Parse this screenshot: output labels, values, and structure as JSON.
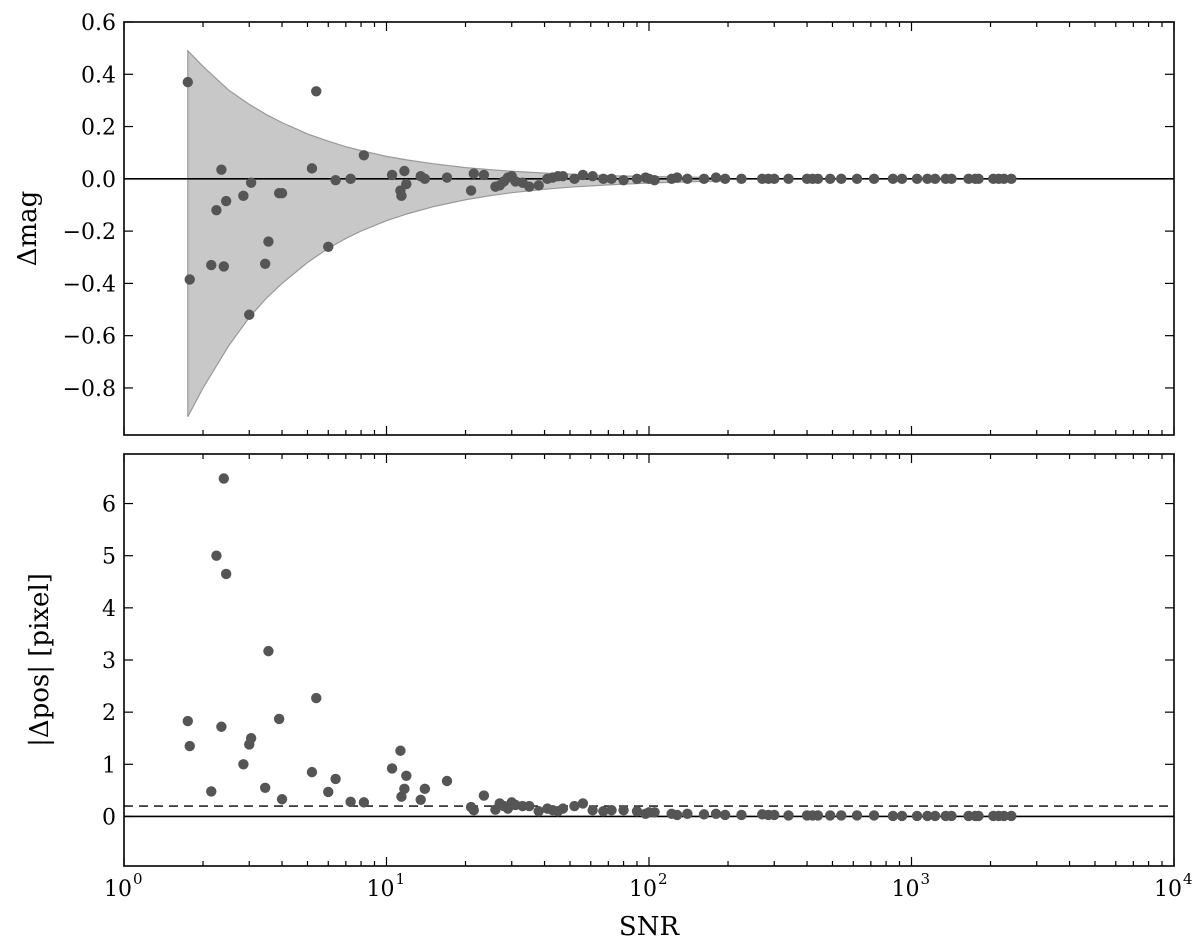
{
  "chart_data": [
    {
      "type": "scatter",
      "title": "",
      "xlabel": "",
      "ylabel": "Δmag",
      "xscale": "log",
      "xlim": [
        1,
        10000
      ],
      "ylim": [
        -0.98,
        0.6
      ],
      "yticks": [
        0.6,
        0.4,
        0.2,
        0.0,
        -0.2,
        -0.4,
        -0.6,
        -0.8
      ],
      "ytick_labels": [
        "0.6",
        "0.4",
        "0.2",
        "0.0",
        "−0.2",
        "−0.4",
        "−0.6",
        "−0.8"
      ],
      "point_color": "#555555",
      "band_color": "#c8c8c8",
      "reference_line": 0.0,
      "band": {
        "x": [
          1.75,
          2.0,
          2.5,
          3,
          3.5,
          4,
          5,
          6,
          7,
          8,
          10,
          12,
          15,
          20,
          25,
          30,
          40,
          50,
          70,
          100,
          150,
          200
        ],
        "upper": [
          0.49,
          0.43,
          0.34,
          0.285,
          0.245,
          0.215,
          0.172,
          0.144,
          0.123,
          0.108,
          0.086,
          0.072,
          0.058,
          0.043,
          0.035,
          0.029,
          0.022,
          0.018,
          0.012,
          0.009,
          0.006,
          0.004
        ],
        "lower": [
          -0.91,
          -0.8,
          -0.64,
          -0.53,
          -0.455,
          -0.4,
          -0.32,
          -0.266,
          -0.228,
          -0.2,
          -0.16,
          -0.134,
          -0.107,
          -0.08,
          -0.064,
          -0.053,
          -0.04,
          -0.032,
          -0.023,
          -0.016,
          -0.011,
          -0.008
        ]
      },
      "x": [
        1.75,
        1.78,
        2.15,
        2.25,
        2.35,
        2.4,
        2.45,
        2.85,
        3.0,
        3.05,
        3.45,
        3.55,
        3.9,
        4.0,
        5.2,
        5.4,
        6.0,
        6.4,
        7.3,
        8.2,
        10.5,
        11.3,
        11.4,
        11.7,
        11.9,
        13.5,
        14.0,
        17.0,
        21.0,
        21.5,
        23.5,
        26.0,
        27.0,
        28.0,
        29.0,
        30.0,
        31.0,
        33.0,
        35.0,
        38.0,
        41.0,
        43.0,
        45.0,
        47.0,
        52.0,
        56.0,
        61.0,
        67.0,
        72.0,
        80.0,
        90.0,
        97.0,
        100.0,
        105.0,
        122.0,
        128.0,
        140.0,
        162.0,
        180.0,
        195.0,
        225.0,
        270.0,
        285.0,
        300.0,
        340.0,
        400.0,
        420.0,
        440.0,
        490.0,
        540.0,
        620.0,
        720.0,
        850.0,
        920.0,
        1050.0,
        1150.0,
        1230.0,
        1350.0,
        1420.0,
        1650.0,
        1750.0,
        1800.0,
        2050.0,
        2150.0,
        2250.0,
        2400.0
      ],
      "y": [
        0.37,
        -0.385,
        -0.33,
        -0.12,
        0.035,
        -0.335,
        -0.085,
        -0.065,
        -0.52,
        -0.015,
        -0.325,
        -0.24,
        -0.055,
        -0.055,
        0.04,
        0.335,
        -0.26,
        -0.005,
        0.0,
        0.09,
        0.015,
        -0.045,
        -0.065,
        0.03,
        -0.02,
        0.01,
        0.0,
        0.005,
        -0.045,
        0.02,
        0.015,
        -0.03,
        -0.025,
        -0.01,
        0.005,
        0.01,
        -0.01,
        -0.015,
        -0.03,
        -0.025,
        0.0,
        0.005,
        0.01,
        0.01,
        0.0,
        0.015,
        0.01,
        0.0,
        0.0,
        -0.005,
        0.0,
        0.005,
        0.0,
        -0.005,
        0.0,
        0.005,
        0.0,
        0.0,
        0.005,
        0.0,
        0.0,
        0.0,
        0.0,
        0.0,
        0.0,
        0.0,
        0.0,
        0.0,
        0.0,
        0.0,
        0.0,
        0.0,
        0.0,
        0.0,
        0.0,
        0.0,
        0.0,
        0.0,
        0.0,
        0.0,
        0.0,
        0.0,
        0.0,
        0.0,
        0.0,
        0.0
      ]
    },
    {
      "type": "scatter",
      "title": "",
      "xlabel": "SNR",
      "ylabel": "|Δpos| [pixel]",
      "xscale": "log",
      "xlim": [
        1,
        10000
      ],
      "xticks": [
        1,
        10,
        100,
        1000,
        10000
      ],
      "xtick_labels": [
        {
          "base": "10",
          "exp": "0"
        },
        {
          "base": "10",
          "exp": "1"
        },
        {
          "base": "10",
          "exp": "2"
        },
        {
          "base": "10",
          "exp": "3"
        },
        {
          "base": "10",
          "exp": "4"
        }
      ],
      "ylim": [
        -0.95,
        6.95
      ],
      "yticks": [
        6,
        5,
        4,
        3,
        2,
        1,
        0
      ],
      "ytick_labels": [
        "6",
        "5",
        "4",
        "3",
        "2",
        "1",
        "0"
      ],
      "point_color": "#555555",
      "reference_line": 0.0,
      "dashed_line": 0.2,
      "x": [
        1.75,
        1.78,
        2.15,
        2.25,
        2.35,
        2.4,
        2.45,
        2.85,
        3.0,
        3.05,
        3.45,
        3.55,
        3.9,
        4.0,
        5.2,
        5.4,
        6.0,
        6.4,
        7.3,
        8.2,
        10.5,
        11.3,
        11.4,
        11.7,
        11.9,
        13.5,
        14.0,
        17.0,
        21.0,
        21.5,
        23.5,
        26.0,
        27.0,
        28.0,
        29.0,
        30.0,
        31.0,
        33.0,
        35.0,
        38.0,
        41.0,
        43.0,
        45.0,
        47.0,
        52.0,
        56.0,
        61.0,
        67.0,
        72.0,
        80.0,
        90.0,
        97.0,
        100.0,
        105.0,
        122.0,
        128.0,
        140.0,
        162.0,
        180.0,
        195.0,
        225.0,
        270.0,
        285.0,
        300.0,
        340.0,
        400.0,
        420.0,
        440.0,
        490.0,
        540.0,
        620.0,
        720.0,
        850.0,
        920.0,
        1050.0,
        1150.0,
        1230.0,
        1350.0,
        1420.0,
        1650.0,
        1750.0,
        1800.0,
        2050.0,
        2150.0,
        2250.0,
        2400.0
      ],
      "y": [
        1.83,
        1.35,
        0.48,
        5.0,
        1.72,
        6.48,
        4.65,
        1.0,
        1.38,
        1.5,
        0.55,
        3.17,
        1.87,
        0.33,
        0.85,
        2.27,
        0.47,
        0.72,
        0.28,
        0.27,
        0.92,
        1.26,
        0.38,
        0.53,
        0.78,
        0.32,
        0.53,
        0.68,
        0.18,
        0.12,
        0.4,
        0.13,
        0.25,
        0.2,
        0.15,
        0.27,
        0.22,
        0.2,
        0.2,
        0.1,
        0.15,
        0.12,
        0.1,
        0.15,
        0.2,
        0.25,
        0.12,
        0.1,
        0.12,
        0.12,
        0.1,
        0.05,
        0.08,
        0.08,
        0.05,
        0.03,
        0.05,
        0.04,
        0.05,
        0.03,
        0.03,
        0.04,
        0.03,
        0.03,
        0.02,
        0.02,
        0.02,
        0.02,
        0.02,
        0.02,
        0.02,
        0.02,
        0.01,
        0.01,
        0.01,
        0.01,
        0.01,
        0.01,
        0.01,
        0.01,
        0.01,
        0.01,
        0.01,
        0.01,
        0.01,
        0.01
      ]
    }
  ]
}
